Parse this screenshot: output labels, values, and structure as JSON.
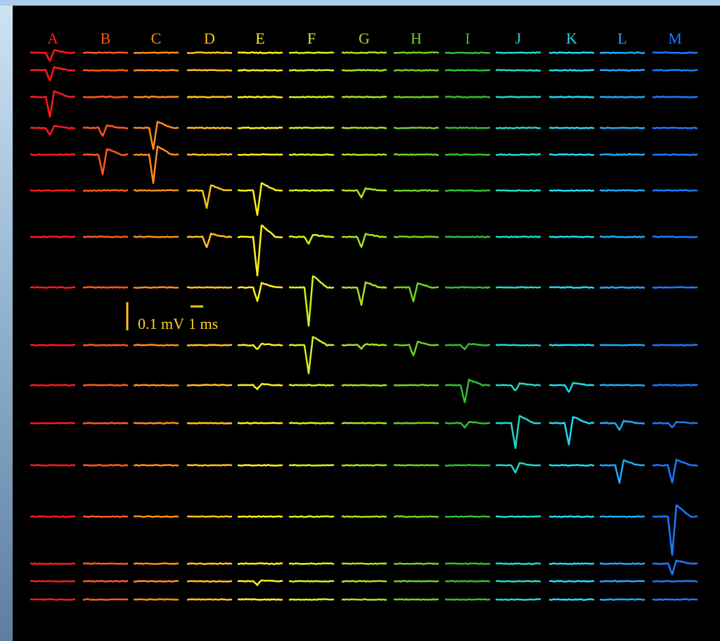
{
  "column_labels": [
    "A",
    "B",
    "C",
    "D",
    "E",
    "F",
    "G",
    "H",
    "I",
    "J",
    "K",
    "L",
    "M"
  ],
  "scale_bar": {
    "voltage": "0.1 mV",
    "time": "1 ms"
  }
}
